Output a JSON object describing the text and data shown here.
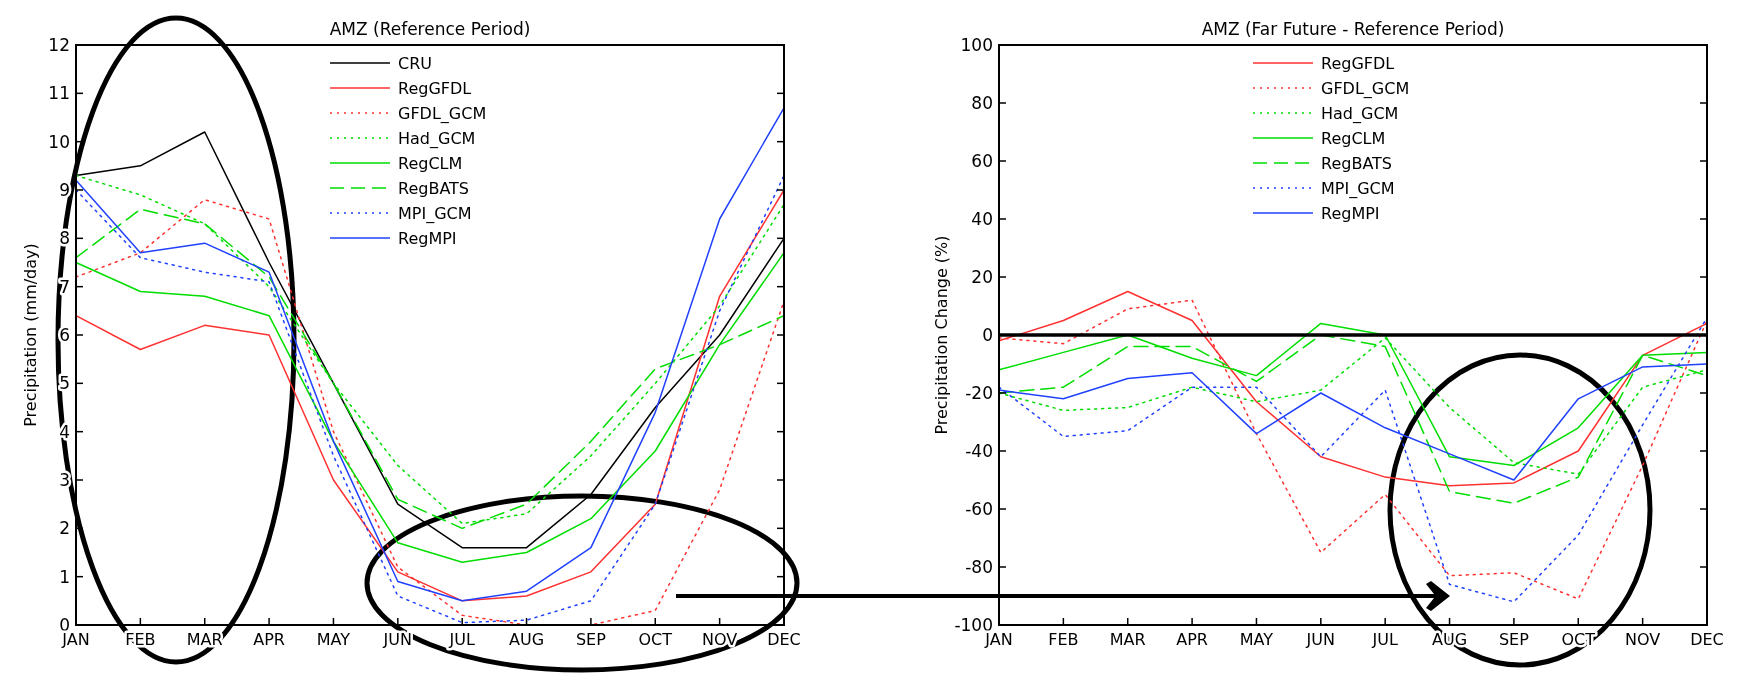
{
  "chart_data": [
    {
      "type": "line",
      "title": "AMZ (Reference Period)",
      "ylabel": "Precipitation (mm/day)",
      "categories": [
        "JAN",
        "FEB",
        "MAR",
        "APR",
        "MAY",
        "JUN",
        "JUL",
        "AUG",
        "SEP",
        "OCT",
        "NOV",
        "DEC"
      ],
      "ylim": [
        0,
        12
      ],
      "yticks": [
        0,
        1,
        2,
        3,
        4,
        5,
        6,
        7,
        8,
        9,
        10,
        11,
        12
      ],
      "legend": "top",
      "grid": false,
      "series": [
        {
          "name": "CRU",
          "color": "#000000",
          "line_style": "solid",
          "values": [
            9.3,
            9.5,
            10.2,
            7.5,
            5.0,
            2.5,
            1.6,
            1.6,
            2.7,
            4.5,
            6.0,
            8.0
          ]
        },
        {
          "name": "RegGFDL",
          "color": "#ff3030",
          "line_style": "solid",
          "values": [
            6.4,
            5.7,
            6.2,
            6.0,
            3.0,
            1.1,
            0.5,
            0.6,
            1.1,
            2.5,
            6.8,
            9.0
          ]
        },
        {
          "name": "GFDL_GCM",
          "color": "#ff3030",
          "line_style": "dotted",
          "values": [
            7.2,
            7.7,
            8.8,
            8.4,
            4.0,
            1.2,
            0.2,
            0.0,
            0.0,
            0.3,
            2.8,
            6.7
          ]
        },
        {
          "name": "Had_GCM",
          "color": "#00dd00",
          "line_style": "dotted",
          "values": [
            9.3,
            8.9,
            8.3,
            7.0,
            5.0,
            3.3,
            2.1,
            2.3,
            3.5,
            5.0,
            6.6,
            8.7
          ]
        },
        {
          "name": "RegCLM",
          "color": "#00dd00",
          "line_style": "solid",
          "values": [
            7.5,
            6.9,
            6.8,
            6.4,
            3.8,
            1.7,
            1.3,
            1.5,
            2.2,
            3.6,
            5.8,
            7.7
          ]
        },
        {
          "name": "RegBATS",
          "color": "#00dd00",
          "line_style": "dashed",
          "values": [
            7.6,
            8.6,
            8.3,
            7.2,
            5.0,
            2.6,
            2.0,
            2.5,
            3.8,
            5.3,
            5.8,
            6.4
          ]
        },
        {
          "name": "MPI_GCM",
          "color": "#2040ff",
          "line_style": "dotted",
          "values": [
            9.0,
            7.6,
            7.3,
            7.1,
            3.5,
            0.6,
            0.05,
            0.1,
            0.5,
            2.5,
            6.5,
            9.3
          ]
        },
        {
          "name": "RegMPI",
          "color": "#2040ff",
          "line_style": "solid",
          "values": [
            9.2,
            7.7,
            7.9,
            7.3,
            3.8,
            0.9,
            0.5,
            0.7,
            1.6,
            4.4,
            8.4,
            10.7
          ]
        }
      ]
    },
    {
      "type": "line",
      "title": "AMZ (Far Future - Reference Period)",
      "ylabel": "Precipitation Change (%)",
      "categories": [
        "JAN",
        "FEB",
        "MAR",
        "APR",
        "MAY",
        "JUN",
        "JUL",
        "AUG",
        "SEP",
        "OCT",
        "NOV",
        "DEC"
      ],
      "ylim": [
        -100,
        100
      ],
      "yticks": [
        -100,
        -80,
        -60,
        -40,
        -20,
        0,
        20,
        40,
        60,
        80,
        100
      ],
      "legend": "top",
      "grid": false,
      "ref_lines": [
        {
          "axis": "y",
          "value": 0,
          "color": "#000000"
        }
      ],
      "series": [
        {
          "name": "RegGFDL",
          "color": "#ff3030",
          "line_style": "solid",
          "values": [
            -2,
            5,
            15,
            5,
            -23,
            -42,
            -49,
            -52,
            -51,
            -40,
            -7,
            4
          ]
        },
        {
          "name": "GFDL_GCM",
          "color": "#ff3030",
          "line_style": "dotted",
          "values": [
            -1,
            -3,
            9,
            12,
            -34,
            -75,
            -55,
            -83,
            -82,
            -91,
            -45,
            5
          ]
        },
        {
          "name": "Had_GCM",
          "color": "#00dd00",
          "line_style": "dotted",
          "values": [
            -20,
            -26,
            -25,
            -18,
            -23,
            -19,
            -1,
            -25,
            -44,
            -48,
            -18,
            -12
          ]
        },
        {
          "name": "RegCLM",
          "color": "#00dd00",
          "line_style": "solid",
          "values": [
            -12,
            -6,
            0,
            -8,
            -14,
            4,
            0,
            -42,
            -45,
            -32,
            -7,
            -6
          ]
        },
        {
          "name": "RegBATS",
          "color": "#00dd00",
          "line_style": "dashed",
          "values": [
            -20,
            -18,
            -4,
            -4,
            -16,
            0,
            -4,
            -54,
            -58,
            -49,
            -7,
            -14
          ]
        },
        {
          "name": "MPI_GCM",
          "color": "#2040ff",
          "line_style": "dotted",
          "values": [
            -18,
            -35,
            -33,
            -18,
            -18,
            -42,
            -19,
            -86,
            -92,
            -69,
            -31,
            6
          ]
        },
        {
          "name": "RegMPI",
          "color": "#2040ff",
          "line_style": "solid",
          "values": [
            -19,
            -22,
            -15,
            -13,
            -34,
            -20,
            -32,
            -41,
            -50,
            -22,
            -11,
            -10
          ]
        }
      ]
    }
  ]
}
